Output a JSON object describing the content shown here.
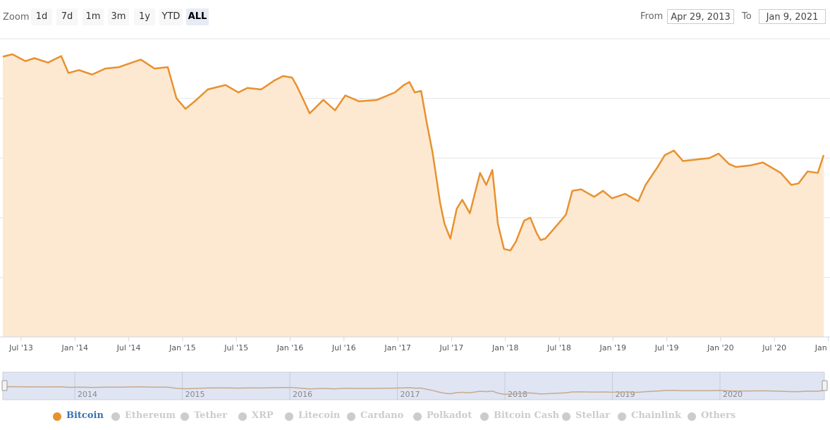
{
  "toolbar": {
    "zoom_label": "Zoom",
    "zoom_buttons": [
      "1d",
      "7d",
      "1m",
      "3m",
      "1y",
      "YTD",
      "ALL"
    ],
    "active_zoom": "ALL",
    "from_label": "From",
    "from_value": "Apr 29, 2013",
    "to_label": "To",
    "to_value": "Jan 9, 2021"
  },
  "chart_data": {
    "type": "area",
    "title": "",
    "xlabel": "",
    "ylabel": "",
    "x_ticks": [
      "Jul '13",
      "Jan '14",
      "Jul '14",
      "Jan '15",
      "Jul '15",
      "Jan '16",
      "Jul '16",
      "Jan '17",
      "Jul '17",
      "Jan '18",
      "Jul '18",
      "Jan '19",
      "Jul '19",
      "Jan '20",
      "Jul '20",
      "Jan '21"
    ],
    "xlim": [
      "2013-04-29",
      "2021-01-09"
    ],
    "ylim": [
      0,
      100
    ],
    "y_unit": "% share",
    "grid": true,
    "series": [
      {
        "name": "Bitcoin",
        "color": "#e8912f",
        "fill": "#fde9d2",
        "points": [
          [
            "2013-04-29",
            94.0
          ],
          [
            "2013-06-01",
            94.8
          ],
          [
            "2013-07-15",
            92.5
          ],
          [
            "2013-08-15",
            93.5
          ],
          [
            "2013-10-01",
            92.0
          ],
          [
            "2013-11-15",
            94.2
          ],
          [
            "2013-12-10",
            88.5
          ],
          [
            "2014-01-15",
            89.5
          ],
          [
            "2014-03-01",
            88.0
          ],
          [
            "2014-04-15",
            90.0
          ],
          [
            "2014-06-01",
            90.5
          ],
          [
            "2014-07-15",
            92.0
          ],
          [
            "2014-08-15",
            93.0
          ],
          [
            "2014-10-01",
            90.0
          ],
          [
            "2014-11-15",
            90.5
          ],
          [
            "2014-12-15",
            80.0
          ],
          [
            "2015-01-15",
            76.5
          ],
          [
            "2015-02-15",
            79.0
          ],
          [
            "2015-04-01",
            83.0
          ],
          [
            "2015-06-01",
            84.5
          ],
          [
            "2015-07-15",
            82.0
          ],
          [
            "2015-08-15",
            83.5
          ],
          [
            "2015-10-01",
            83.0
          ],
          [
            "2015-11-15",
            86.0
          ],
          [
            "2015-12-15",
            87.5
          ],
          [
            "2016-01-15",
            87.0
          ],
          [
            "2016-02-01",
            84.0
          ],
          [
            "2016-03-01",
            78.0
          ],
          [
            "2016-03-15",
            75.0
          ],
          [
            "2016-05-01",
            79.5
          ],
          [
            "2016-06-10",
            76.0
          ],
          [
            "2016-07-15",
            81.0
          ],
          [
            "2016-09-01",
            79.0
          ],
          [
            "2016-11-01",
            79.5
          ],
          [
            "2017-01-01",
            82.0
          ],
          [
            "2017-02-01",
            84.5
          ],
          [
            "2017-02-20",
            85.5
          ],
          [
            "2017-03-10",
            82.0
          ],
          [
            "2017-04-01",
            82.5
          ],
          [
            "2017-04-20",
            72.0
          ],
          [
            "2017-05-10",
            62.0
          ],
          [
            "2017-06-05",
            45.0
          ],
          [
            "2017-06-20",
            38.0
          ],
          [
            "2017-07-10",
            33.0
          ],
          [
            "2017-08-01",
            43.0
          ],
          [
            "2017-08-20",
            46.0
          ],
          [
            "2017-09-15",
            41.5
          ],
          [
            "2017-10-20",
            55.0
          ],
          [
            "2017-11-10",
            51.0
          ],
          [
            "2017-12-01",
            56.0
          ],
          [
            "2017-12-20",
            38.0
          ],
          [
            "2018-01-10",
            29.5
          ],
          [
            "2018-02-01",
            29.0
          ],
          [
            "2018-02-20",
            32.0
          ],
          [
            "2018-03-20",
            39.0
          ],
          [
            "2018-04-10",
            40.0
          ],
          [
            "2018-05-01",
            35.0
          ],
          [
            "2018-05-15",
            32.5
          ],
          [
            "2018-06-01",
            33.0
          ],
          [
            "2018-07-15",
            38.0
          ],
          [
            "2018-08-10",
            41.0
          ],
          [
            "2018-09-01",
            49.0
          ],
          [
            "2018-10-01",
            49.5
          ],
          [
            "2018-11-15",
            47.0
          ],
          [
            "2018-12-15",
            49.0
          ],
          [
            "2019-01-15",
            46.5
          ],
          [
            "2019-03-01",
            48.0
          ],
          [
            "2019-04-15",
            45.5
          ],
          [
            "2019-05-10",
            51.0
          ],
          [
            "2019-06-20",
            57.0
          ],
          [
            "2019-07-15",
            61.0
          ],
          [
            "2019-08-15",
            62.5
          ],
          [
            "2019-09-15",
            59.0
          ],
          [
            "2019-11-01",
            59.5
          ],
          [
            "2019-12-15",
            60.0
          ],
          [
            "2020-01-15",
            61.5
          ],
          [
            "2020-02-20",
            58.0
          ],
          [
            "2020-03-15",
            57.0
          ],
          [
            "2020-05-01",
            57.5
          ],
          [
            "2020-06-15",
            58.5
          ],
          [
            "2020-08-15",
            55.0
          ],
          [
            "2020-09-20",
            51.0
          ],
          [
            "2020-10-15",
            51.5
          ],
          [
            "2020-11-15",
            55.5
          ],
          [
            "2020-12-20",
            55.0
          ],
          [
            "2021-01-09",
            61.0
          ]
        ]
      }
    ],
    "navigator_labels": [
      "2014",
      "2015",
      "2016",
      "2017",
      "2018",
      "2019",
      "2020"
    ],
    "legend_position": "bottom",
    "legend": [
      {
        "name": "Bitcoin",
        "active": true
      },
      {
        "name": "Ethereum",
        "active": false
      },
      {
        "name": "Tether",
        "active": false
      },
      {
        "name": "XRP",
        "active": false
      },
      {
        "name": "Litecoin",
        "active": false
      },
      {
        "name": "Cardano",
        "active": false
      },
      {
        "name": "Polkadot",
        "active": false
      },
      {
        "name": "Bitcoin Cash",
        "active": false
      },
      {
        "name": "Stellar",
        "active": false
      },
      {
        "name": "Chainlink",
        "active": false
      },
      {
        "name": "Others",
        "active": false
      }
    ]
  },
  "colors": {
    "line": "#e8912f",
    "fill": "#fde9d2",
    "grid": "#e6e6e6",
    "navigator_fill": "#dfe5f3",
    "navigator_line": "#c9a98a",
    "legend_active_text": "#3473b7",
    "legend_active_dot": "#e8912f",
    "legend_inactive": "#cccccc"
  }
}
